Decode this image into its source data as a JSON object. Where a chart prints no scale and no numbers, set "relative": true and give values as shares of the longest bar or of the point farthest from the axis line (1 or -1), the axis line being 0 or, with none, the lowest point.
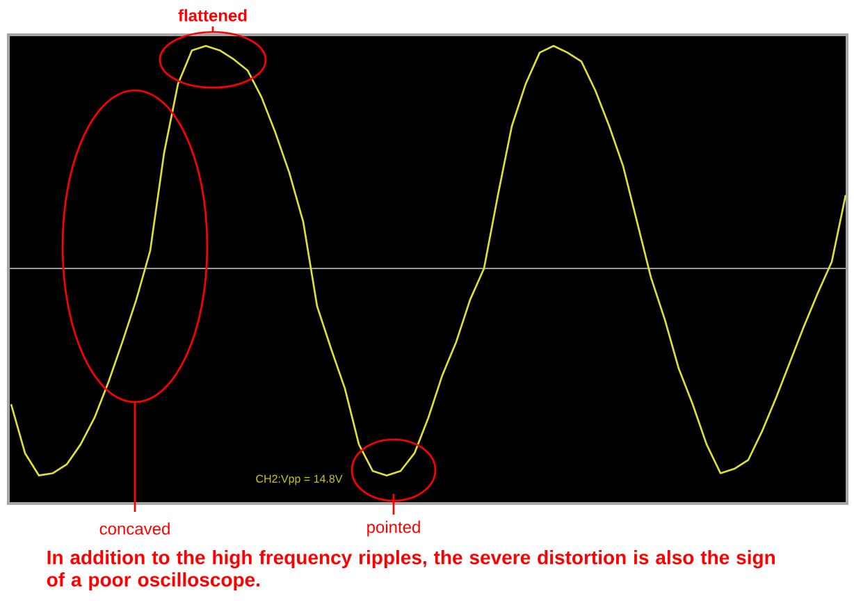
{
  "chart_data": {
    "type": "line",
    "relative": true,
    "marker": "none",
    "line_style": "solid",
    "categories": [
      null,
      null,
      null,
      null,
      null,
      null,
      null,
      null,
      null,
      null,
      null,
      null,
      null,
      null,
      null,
      null,
      null,
      null,
      null,
      null,
      null,
      null,
      null,
      null,
      null,
      null,
      null,
      null,
      null,
      null,
      null,
      null,
      null,
      null,
      null,
      null,
      null,
      null,
      null,
      null,
      null,
      null,
      null,
      null,
      null,
      null,
      null,
      null,
      null,
      null,
      null,
      null,
      null,
      null,
      null,
      null,
      null,
      null,
      null,
      null,
      null
    ],
    "series": [
      {
        "color": "#e0e030",
        "values": [
          -0.61,
          -0.83,
          -0.93,
          -0.92,
          -0.88,
          -0.79,
          -0.67,
          -0.51,
          -0.33,
          -0.14,
          0.08,
          0.52,
          0.83,
          0.98,
          1.0,
          0.98,
          0.94,
          0.89,
          0.77,
          0.61,
          0.43,
          0.21,
          -0.17,
          -0.36,
          -0.54,
          -0.79,
          -0.91,
          -0.93,
          -0.91,
          -0.83,
          -0.67,
          -0.48,
          -0.33,
          -0.14,
          0,
          0.33,
          0.64,
          0.83,
          0.97,
          1.0,
          0.97,
          0.93,
          0.8,
          0.64,
          0.46,
          0.21,
          -0.04,
          -0.23,
          -0.45,
          -0.61,
          -0.79,
          -0.92,
          -0.9,
          -0.86,
          -0.73,
          -0.58,
          -0.42,
          -0.26,
          -0.11,
          0.03,
          0.33
        ]
      }
    ],
    "annotations": [
      "flattened",
      "concaved",
      "pointed",
      "CH2:Vpp = 14.8V",
      "In addition to the high frequency ripples, the severe distortion is also the sign of a poor oscilloscope."
    ]
  }
}
